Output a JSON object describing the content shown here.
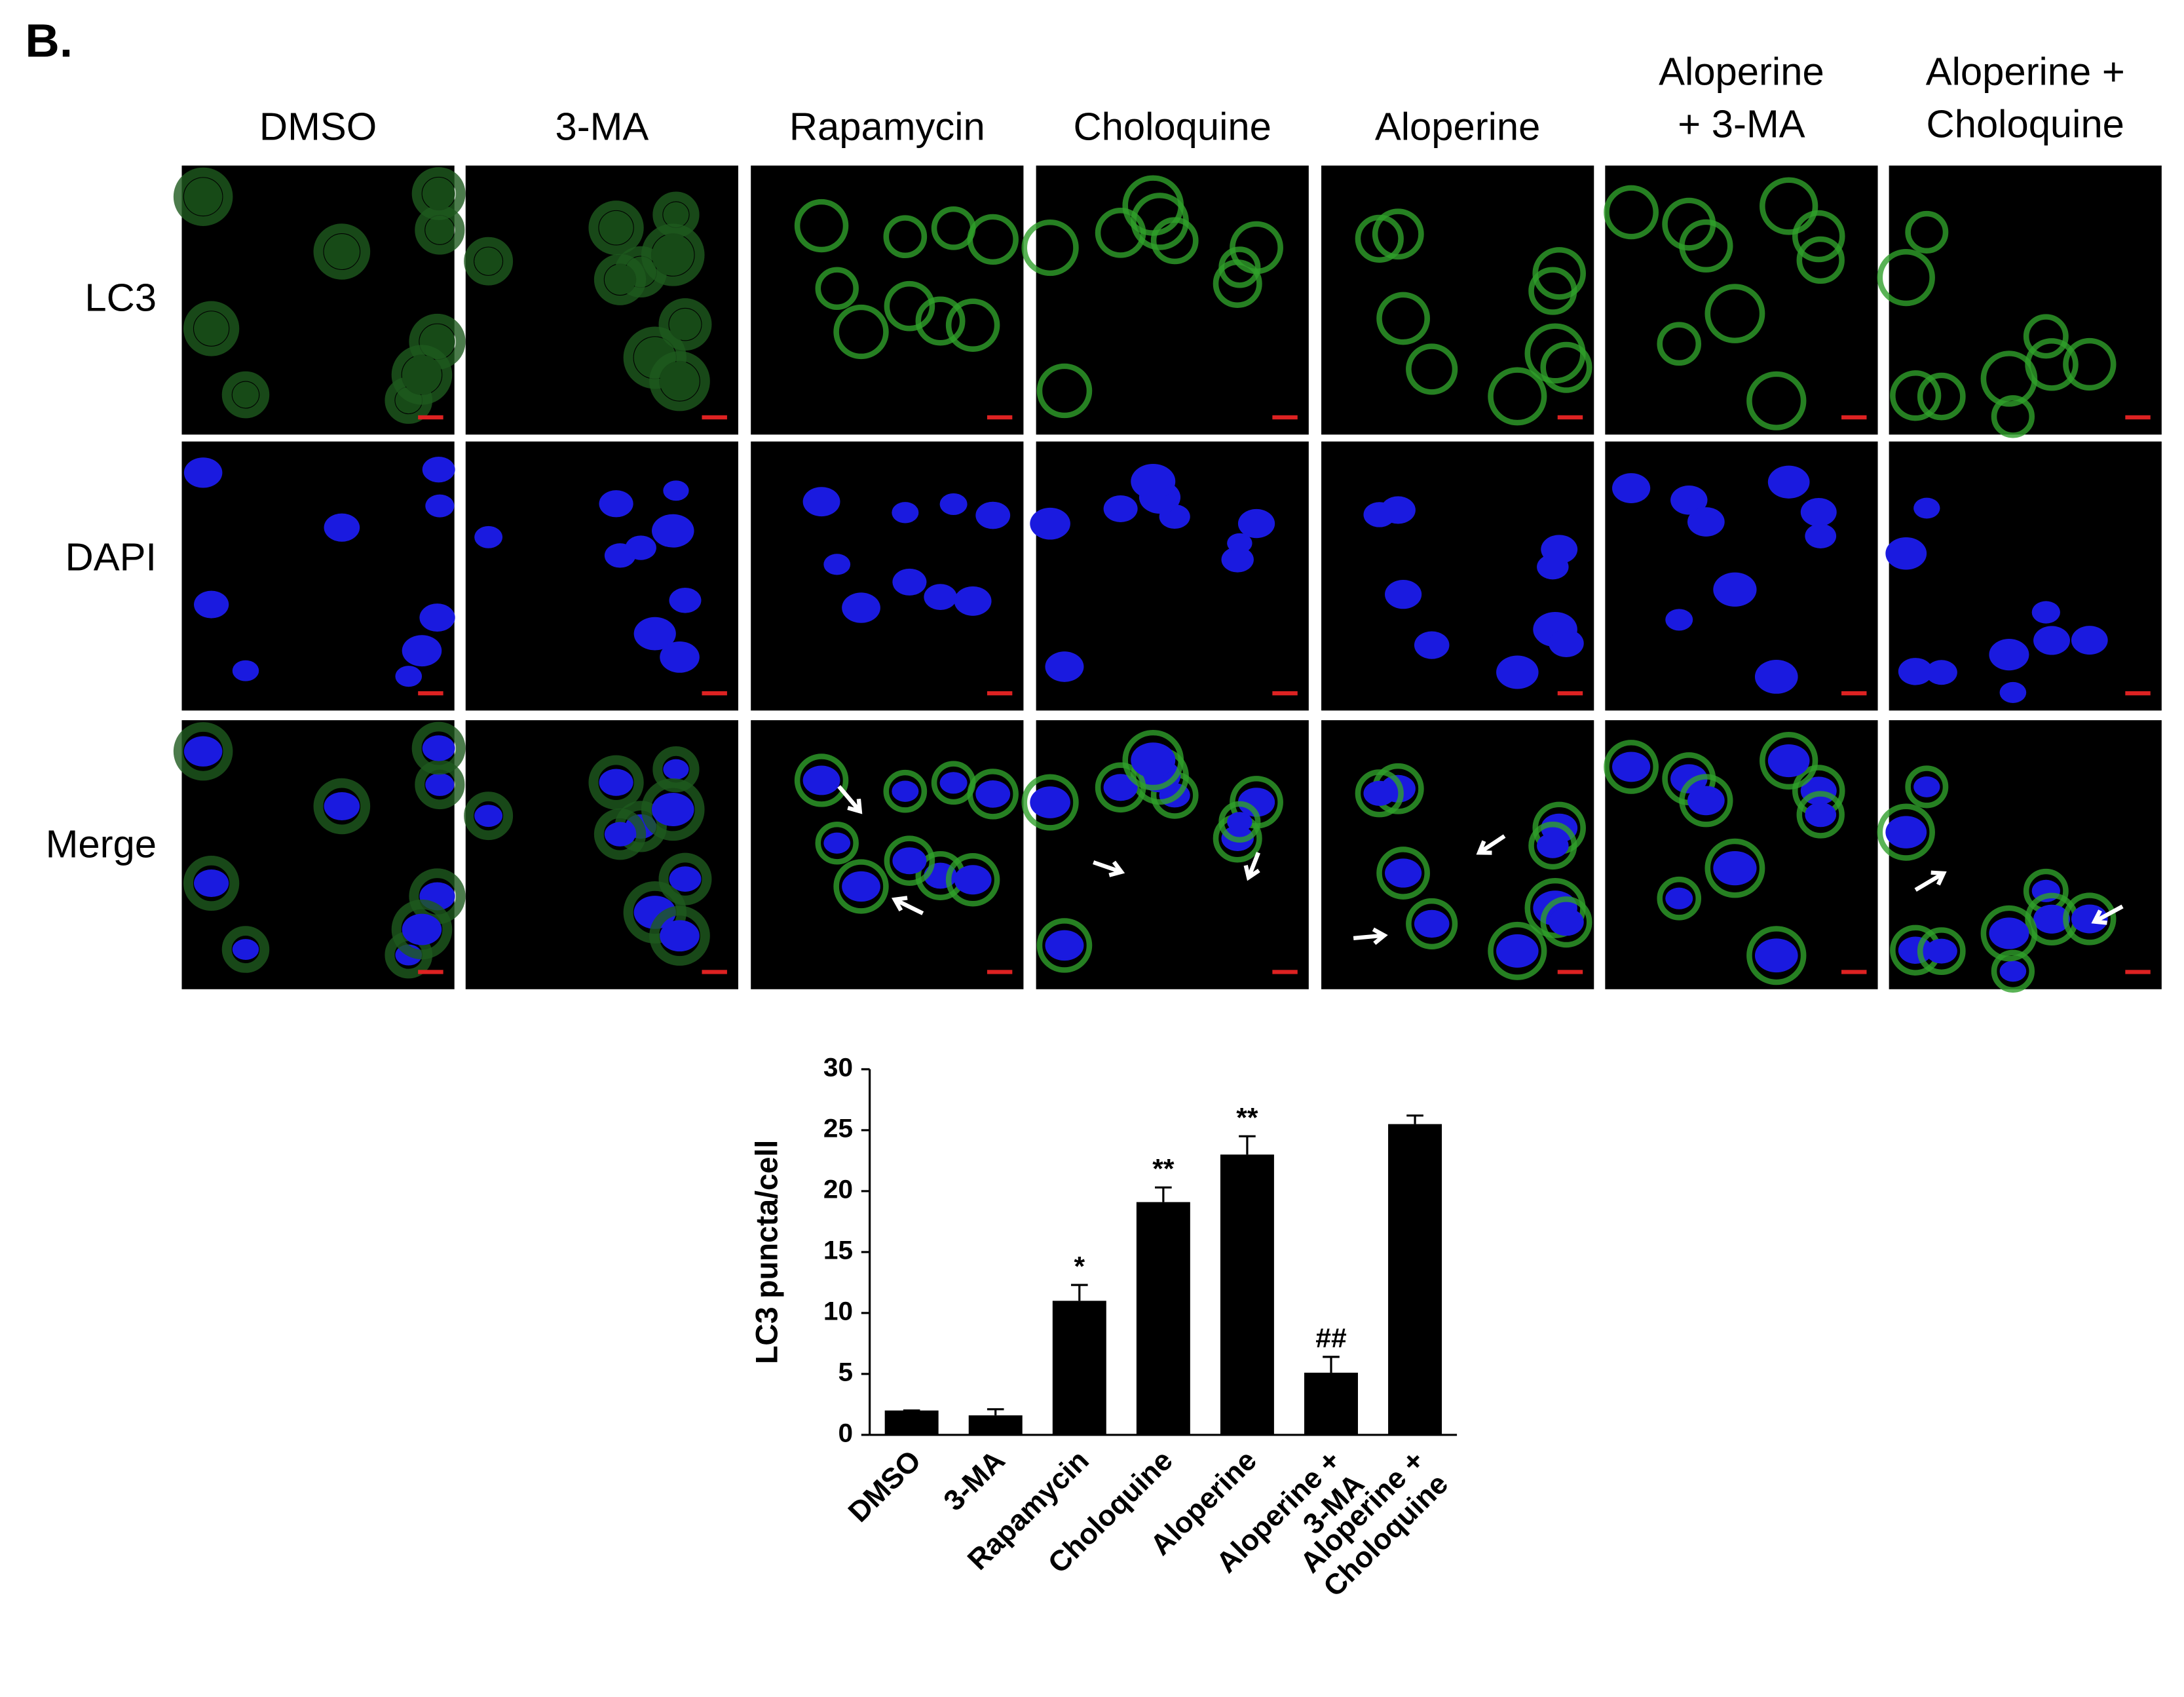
{
  "panel_label": "B.",
  "columns": [
    [
      "DMSO"
    ],
    [
      "3-MA"
    ],
    [
      "Rapamycin"
    ],
    [
      "Choloquine"
    ],
    [
      "Aloperine"
    ],
    [
      "Aloperine",
      "+ 3-MA"
    ],
    [
      "Aloperine +",
      "Choloquine"
    ]
  ],
  "rows": [
    "LC3",
    "DAPI",
    "Merge"
  ],
  "chart_data": {
    "type": "bar",
    "y_label": "LC3 puncta/cell",
    "categories": [
      [
        "DMSO"
      ],
      [
        "3-MA"
      ],
      [
        "Rapamycin"
      ],
      [
        "Choloquine"
      ],
      [
        "Aloperine"
      ],
      [
        "Aloperine +",
        "3-MA"
      ],
      [
        "Aloperine +",
        "Choloquine"
      ]
    ],
    "values": [
      2,
      1.6,
      11,
      19.1,
      23,
      5.1,
      25.5
    ],
    "errors": [
      0,
      0.5,
      1.3,
      1.2,
      1.5,
      1.3,
      0.7
    ],
    "annotations": [
      null,
      null,
      "*",
      "**",
      "**",
      "##",
      null
    ],
    "color": "#000000",
    "ylim": [
      0,
      30
    ],
    "yticks": [
      0,
      5,
      10,
      15,
      20,
      25,
      30
    ]
  }
}
